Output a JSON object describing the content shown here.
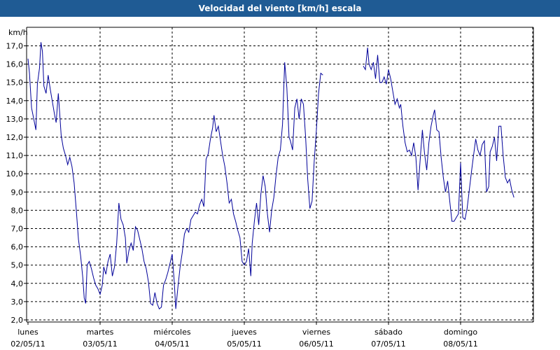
{
  "window": {
    "title": "Velocidad del viento [km/h] escala"
  },
  "colors": {
    "title_bar": "#1f5b94",
    "series": "#000099",
    "grid": "#000000",
    "background": "#ffffff"
  },
  "chart_data": {
    "type": "line",
    "title": "Velocidad del viento [km/h] escala",
    "ylabel": "km/h",
    "xlabel": "",
    "ylim": [
      2.0,
      17.5
    ],
    "y_ticks": [
      "17,0",
      "16,0",
      "15,0",
      "14,0",
      "13,0",
      "12,0",
      "11,0",
      "10,0",
      "9,0",
      "8,0",
      "7,0",
      "6,0",
      "5,0",
      "4,0",
      "3,0",
      "2,0"
    ],
    "x_range_days": [
      0,
      7
    ],
    "days": [
      {
        "weekday": "lunes",
        "date": "02/05/11"
      },
      {
        "weekday": "martes",
        "date": "03/05/11"
      },
      {
        "weekday": "miércoles",
        "date": "04/05/11"
      },
      {
        "weekday": "jueves",
        "date": "05/05/11"
      },
      {
        "weekday": "viernes",
        "date": "06/05/11"
      },
      {
        "weekday": "sábado",
        "date": "07/05/11"
      },
      {
        "weekday": "domingo",
        "date": "08/05/11"
      }
    ],
    "grid": true,
    "series": [
      {
        "segments": [
          [
            [
              0.0,
              16.3
            ],
            [
              0.02,
              15.5
            ],
            [
              0.05,
              13.6
            ],
            [
              0.08,
              13.0
            ],
            [
              0.11,
              12.4
            ],
            [
              0.13,
              14.9
            ],
            [
              0.16,
              15.8
            ],
            [
              0.18,
              17.2
            ],
            [
              0.2,
              16.7
            ],
            [
              0.22,
              14.8
            ],
            [
              0.25,
              14.4
            ],
            [
              0.28,
              15.4
            ],
            [
              0.31,
              14.6
            ],
            [
              0.34,
              13.9
            ],
            [
              0.37,
              13.2
            ],
            [
              0.39,
              12.8
            ],
            [
              0.42,
              14.4
            ],
            [
              0.44,
              13.3
            ],
            [
              0.46,
              12.1
            ],
            [
              0.49,
              11.4
            ],
            [
              0.52,
              11.0
            ],
            [
              0.55,
              10.5
            ],
            [
              0.58,
              10.9
            ],
            [
              0.61,
              10.4
            ],
            [
              0.64,
              9.5
            ],
            [
              0.67,
              8.0
            ],
            [
              0.7,
              6.4
            ],
            [
              0.73,
              5.5
            ],
            [
              0.76,
              4.3
            ],
            [
              0.78,
              3.2
            ],
            [
              0.8,
              2.9
            ],
            [
              0.82,
              5.0
            ],
            [
              0.85,
              5.2
            ],
            [
              0.88,
              4.8
            ],
            [
              0.91,
              4.3
            ],
            [
              0.94,
              3.9
            ],
            [
              0.97,
              3.7
            ],
            [
              1.0,
              3.4
            ],
            [
              1.03,
              3.9
            ],
            [
              1.05,
              4.9
            ],
            [
              1.08,
              4.5
            ],
            [
              1.11,
              5.2
            ],
            [
              1.14,
              5.6
            ],
            [
              1.17,
              4.4
            ],
            [
              1.2,
              4.9
            ],
            [
              1.23,
              6.2
            ],
            [
              1.26,
              8.4
            ],
            [
              1.29,
              7.5
            ],
            [
              1.32,
              7.2
            ],
            [
              1.35,
              6.5
            ],
            [
              1.37,
              5.1
            ],
            [
              1.4,
              5.8
            ],
            [
              1.43,
              6.2
            ],
            [
              1.46,
              5.8
            ],
            [
              1.49,
              7.1
            ],
            [
              1.52,
              6.9
            ],
            [
              1.55,
              6.4
            ],
            [
              1.58,
              5.9
            ],
            [
              1.61,
              5.2
            ],
            [
              1.64,
              4.8
            ],
            [
              1.67,
              4.1
            ],
            [
              1.7,
              2.9
            ],
            [
              1.73,
              2.8
            ],
            [
              1.76,
              3.5
            ],
            [
              1.79,
              2.9
            ],
            [
              1.82,
              2.6
            ],
            [
              1.85,
              2.7
            ],
            [
              1.88,
              3.9
            ],
            [
              1.91,
              4.2
            ],
            [
              1.94,
              4.6
            ],
            [
              1.97,
              5.1
            ],
            [
              2.0,
              5.6
            ],
            [
              2.03,
              4.0
            ],
            [
              2.05,
              2.6
            ],
            [
              2.08,
              3.8
            ],
            [
              2.11,
              4.9
            ],
            [
              2.14,
              5.7
            ],
            [
              2.17,
              6.7
            ],
            [
              2.2,
              7.0
            ],
            [
              2.23,
              6.8
            ],
            [
              2.26,
              7.5
            ],
            [
              2.29,
              7.7
            ],
            [
              2.32,
              7.9
            ],
            [
              2.35,
              7.8
            ],
            [
              2.38,
              8.3
            ],
            [
              2.41,
              8.6
            ],
            [
              2.44,
              8.2
            ],
            [
              2.47,
              10.8
            ],
            [
              2.5,
              11.1
            ],
            [
              2.53,
              11.9
            ],
            [
              2.56,
              12.5
            ],
            [
              2.58,
              13.2
            ],
            [
              2.61,
              12.3
            ],
            [
              2.64,
              12.6
            ],
            [
              2.67,
              11.8
            ],
            [
              2.7,
              11.0
            ],
            [
              2.73,
              10.4
            ],
            [
              2.76,
              9.5
            ],
            [
              2.79,
              8.4
            ],
            [
              2.82,
              8.6
            ],
            [
              2.85,
              7.8
            ],
            [
              2.88,
              7.4
            ],
            [
              2.91,
              6.9
            ],
            [
              2.94,
              6.5
            ],
            [
              2.97,
              5.2
            ],
            [
              3.0,
              5.0
            ],
            [
              3.03,
              5.2
            ],
            [
              3.06,
              5.9
            ],
            [
              3.09,
              4.4
            ],
            [
              3.11,
              6.2
            ],
            [
              3.14,
              7.4
            ],
            [
              3.17,
              8.4
            ],
            [
              3.2,
              7.2
            ],
            [
              3.23,
              8.9
            ],
            [
              3.26,
              9.9
            ],
            [
              3.29,
              9.3
            ],
            [
              3.32,
              7.8
            ],
            [
              3.35,
              6.8
            ],
            [
              3.38,
              8.0
            ],
            [
              3.41,
              8.7
            ],
            [
              3.44,
              9.9
            ],
            [
              3.47,
              10.9
            ],
            [
              3.5,
              11.3
            ],
            [
              3.53,
              12.7
            ],
            [
              3.56,
              16.1
            ],
            [
              3.59,
              14.7
            ],
            [
              3.62,
              12.0
            ],
            [
              3.64,
              11.8
            ],
            [
              3.67,
              11.3
            ],
            [
              3.7,
              13.6
            ],
            [
              3.73,
              14.1
            ],
            [
              3.76,
              13.0
            ],
            [
              3.79,
              14.1
            ],
            [
              3.82,
              13.8
            ],
            [
              3.85,
              12.0
            ],
            [
              3.88,
              9.7
            ],
            [
              3.91,
              8.1
            ],
            [
              3.94,
              8.5
            ],
            [
              3.97,
              10.7
            ],
            [
              4.0,
              12.4
            ],
            [
              4.03,
              14.4
            ],
            [
              4.06,
              15.5
            ],
            [
              4.09,
              15.4
            ]
          ],
          [
            [
              4.65,
              15.9
            ],
            [
              4.68,
              15.7
            ],
            [
              4.71,
              16.9
            ],
            [
              4.73,
              16.0
            ],
            [
              4.76,
              15.7
            ],
            [
              4.79,
              16.1
            ],
            [
              4.82,
              15.2
            ],
            [
              4.85,
              16.5
            ],
            [
              4.88,
              15.0
            ],
            [
              4.91,
              15.0
            ],
            [
              4.94,
              15.3
            ],
            [
              4.97,
              14.9
            ],
            [
              5.0,
              15.7
            ],
            [
              5.03,
              15.2
            ],
            [
              5.06,
              14.5
            ],
            [
              5.09,
              13.8
            ],
            [
              5.12,
              14.1
            ],
            [
              5.15,
              13.6
            ],
            [
              5.17,
              13.8
            ],
            [
              5.2,
              12.6
            ],
            [
              5.23,
              11.7
            ],
            [
              5.26,
              11.2
            ],
            [
              5.29,
              11.3
            ],
            [
              5.32,
              11.0
            ],
            [
              5.35,
              11.7
            ],
            [
              5.38,
              10.9
            ],
            [
              5.41,
              9.1
            ],
            [
              5.44,
              10.8
            ],
            [
              5.47,
              12.4
            ],
            [
              5.5,
              11.1
            ],
            [
              5.53,
              10.2
            ],
            [
              5.56,
              11.7
            ],
            [
              5.59,
              12.6
            ],
            [
              5.62,
              13.2
            ],
            [
              5.64,
              13.5
            ],
            [
              5.67,
              12.4
            ],
            [
              5.7,
              12.3
            ],
            [
              5.73,
              10.9
            ],
            [
              5.76,
              9.8
            ],
            [
              5.79,
              9.0
            ],
            [
              5.82,
              9.6
            ],
            [
              5.85,
              8.5
            ],
            [
              5.88,
              7.4
            ],
            [
              5.91,
              7.4
            ],
            [
              5.94,
              7.6
            ],
            [
              5.97,
              7.8
            ],
            [
              6.0,
              10.6
            ],
            [
              6.03,
              7.6
            ],
            [
              6.06,
              7.5
            ],
            [
              6.09,
              8.1
            ],
            [
              6.12,
              9.1
            ],
            [
              6.15,
              10.1
            ],
            [
              6.18,
              11.0
            ],
            [
              6.21,
              11.9
            ],
            [
              6.24,
              11.3
            ],
            [
              6.27,
              11.0
            ],
            [
              6.3,
              11.6
            ],
            [
              6.33,
              11.8
            ],
            [
              6.36,
              9.0
            ],
            [
              6.39,
              9.3
            ],
            [
              6.41,
              11.2
            ],
            [
              6.44,
              11.5
            ],
            [
              6.47,
              12.0
            ],
            [
              6.5,
              10.7
            ],
            [
              6.53,
              12.6
            ],
            [
              6.56,
              12.6
            ],
            [
              6.59,
              11.0
            ],
            [
              6.62,
              9.8
            ],
            [
              6.65,
              9.5
            ],
            [
              6.68,
              9.7
            ],
            [
              6.71,
              9.1
            ],
            [
              6.74,
              8.7
            ]
          ]
        ]
      }
    ]
  }
}
